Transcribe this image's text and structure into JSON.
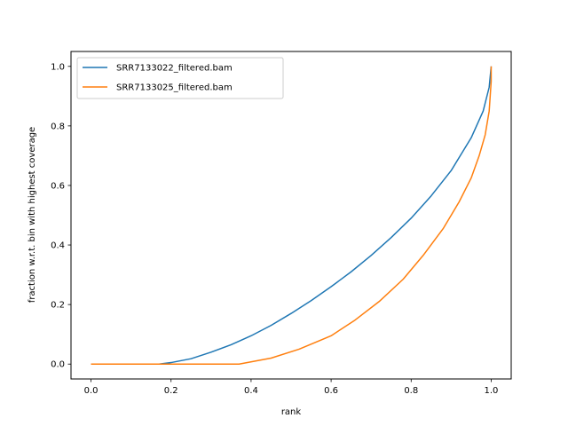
{
  "chart_data": {
    "type": "line",
    "title": "",
    "xlabel": "rank",
    "ylabel": "fraction w.r.t. bin with highest coverage",
    "xlim": [
      -0.05,
      1.05
    ],
    "ylim": [
      -0.05,
      1.05
    ],
    "xticks": [
      "0.0",
      "0.2",
      "0.4",
      "0.6",
      "0.8",
      "1.0"
    ],
    "yticks": [
      "0.0",
      "0.2",
      "0.4",
      "0.6",
      "0.8",
      "1.0"
    ],
    "grid": false,
    "legend_position": "top-left",
    "series": [
      {
        "name": "SRR7133022_filtered.bam",
        "color": "#1f77b4",
        "x": [
          0.0,
          0.17,
          0.2,
          0.25,
          0.3,
          0.35,
          0.4,
          0.45,
          0.5,
          0.55,
          0.6,
          0.65,
          0.7,
          0.75,
          0.8,
          0.85,
          0.9,
          0.95,
          0.98,
          0.995,
          1.0
        ],
        "y": [
          0.0,
          0.0,
          0.005,
          0.018,
          0.04,
          0.065,
          0.095,
          0.13,
          0.17,
          0.213,
          0.26,
          0.31,
          0.365,
          0.425,
          0.49,
          0.565,
          0.65,
          0.76,
          0.85,
          0.93,
          1.0
        ]
      },
      {
        "name": "SRR7133025_filtered.bam",
        "color": "#ff7f0e",
        "x": [
          0.0,
          0.2,
          0.37,
          0.45,
          0.52,
          0.6,
          0.66,
          0.72,
          0.78,
          0.83,
          0.88,
          0.92,
          0.95,
          0.97,
          0.985,
          0.995,
          1.0,
          1.0
        ],
        "y": [
          0.0,
          0.0,
          0.0,
          0.02,
          0.05,
          0.095,
          0.148,
          0.21,
          0.285,
          0.365,
          0.455,
          0.545,
          0.625,
          0.7,
          0.77,
          0.85,
          0.95,
          1.0
        ]
      }
    ]
  }
}
